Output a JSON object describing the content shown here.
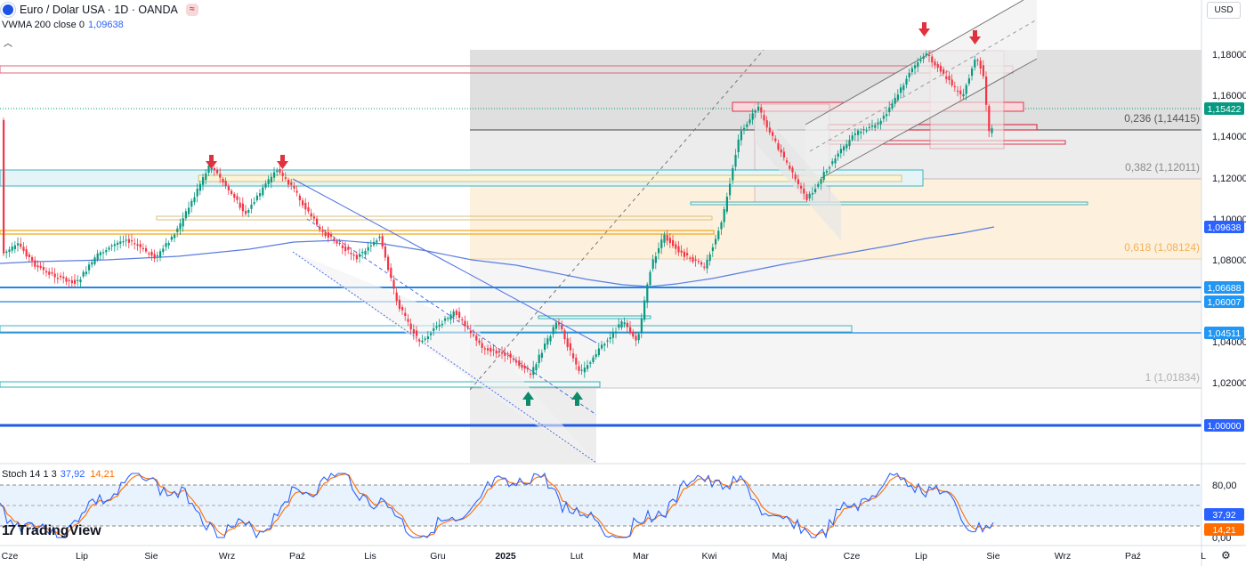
{
  "header": {
    "symbol_title": "Euro / Dolar USA · 1D · OANDA"
  },
  "indicator": {
    "name": "VWMA 200 close 0",
    "value": "1,09638"
  },
  "stoch": {
    "name": "Stoch 14 1 3",
    "k_value": "37,92",
    "d_value": "14,21"
  },
  "currency_button": "USD",
  "brand": "TradingView",
  "price_axis": {
    "ticks": [
      "1,18000",
      "1,16000",
      "1,14000",
      "1,12000",
      "1,10000",
      "1,08000",
      "1,04000",
      "1,02000"
    ],
    "badges": [
      {
        "label": "1,15422",
        "color": "#089981"
      },
      {
        "label": "1,09638",
        "color": "#2962ff"
      },
      {
        "label": "1,06688",
        "color": "#2196f3"
      },
      {
        "label": "1,06007",
        "color": "#2196f3"
      },
      {
        "label": "1,04511",
        "color": "#2196f3"
      },
      {
        "label": "1,00000",
        "color": "#2962ff"
      }
    ]
  },
  "fib_labels": [
    "0,236 (1,14415)",
    "0,382 (1,12011)",
    "0,618 (1,08124)",
    "1 (1,01834)"
  ],
  "stoch_axis": {
    "ticks": [
      "80,00",
      "0,00"
    ],
    "k_badge": "37,92",
    "d_badge": "14,21"
  },
  "time_axis": [
    "Cze",
    "Lip",
    "Sie",
    "Wrz",
    "Paź",
    "Lis",
    "Gru",
    "2025",
    "Lut",
    "Mar",
    "Kwi",
    "Maj",
    "Cze",
    "Lip",
    "Sie",
    "Wrz",
    "Paź",
    "L"
  ],
  "colors": {
    "up": "#089981",
    "down": "#f23645",
    "vwma": "#5b7de0",
    "stoch_k": "#2962ff",
    "stoch_d": "#ff6d00",
    "arrow_down": "#e0313f",
    "arrow_up": "#0d8a6a"
  }
}
